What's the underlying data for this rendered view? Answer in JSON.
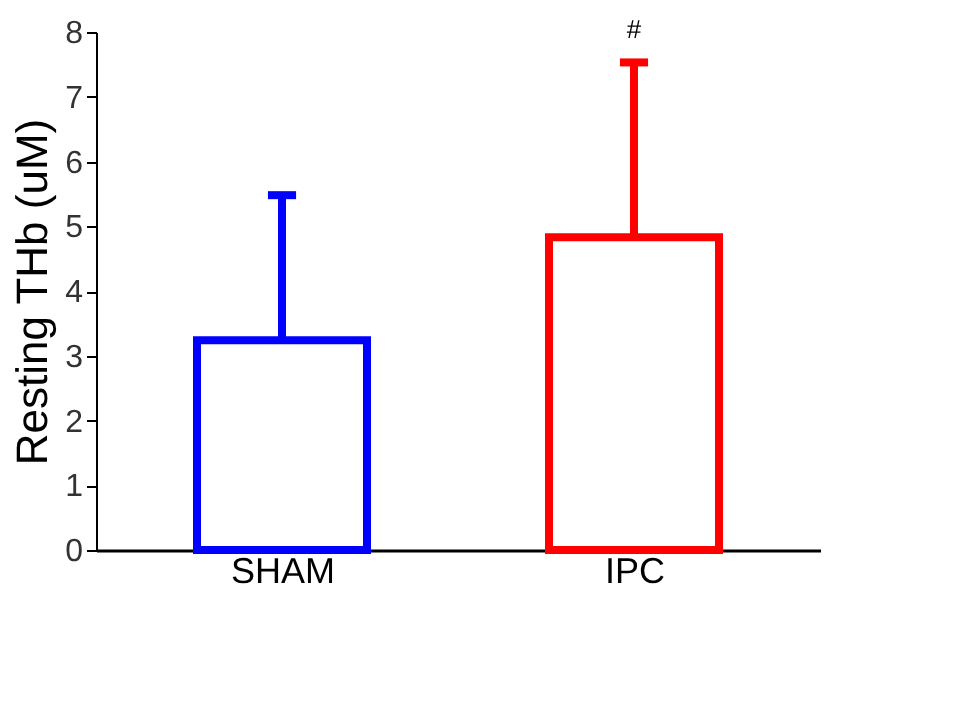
{
  "chart_data": {
    "type": "bar",
    "ylabel": "Resting THb (uM)",
    "categories": [
      "SHAM",
      "IPC"
    ],
    "values": [
      3.24,
      4.83
    ],
    "colors": [
      "#0000ff",
      "#ff0000"
    ],
    "errors": [
      [
        3.24,
        5.48
      ],
      [
        4.83,
        7.53
      ]
    ],
    "annotations": [
      {
        "text": "#",
        "x": "IPC",
        "y": 7.53
      }
    ],
    "ylim": [
      0,
      8
    ],
    "yticks": [
      0,
      1,
      2,
      3,
      4,
      5,
      6,
      7,
      8
    ],
    "grid": false
  }
}
